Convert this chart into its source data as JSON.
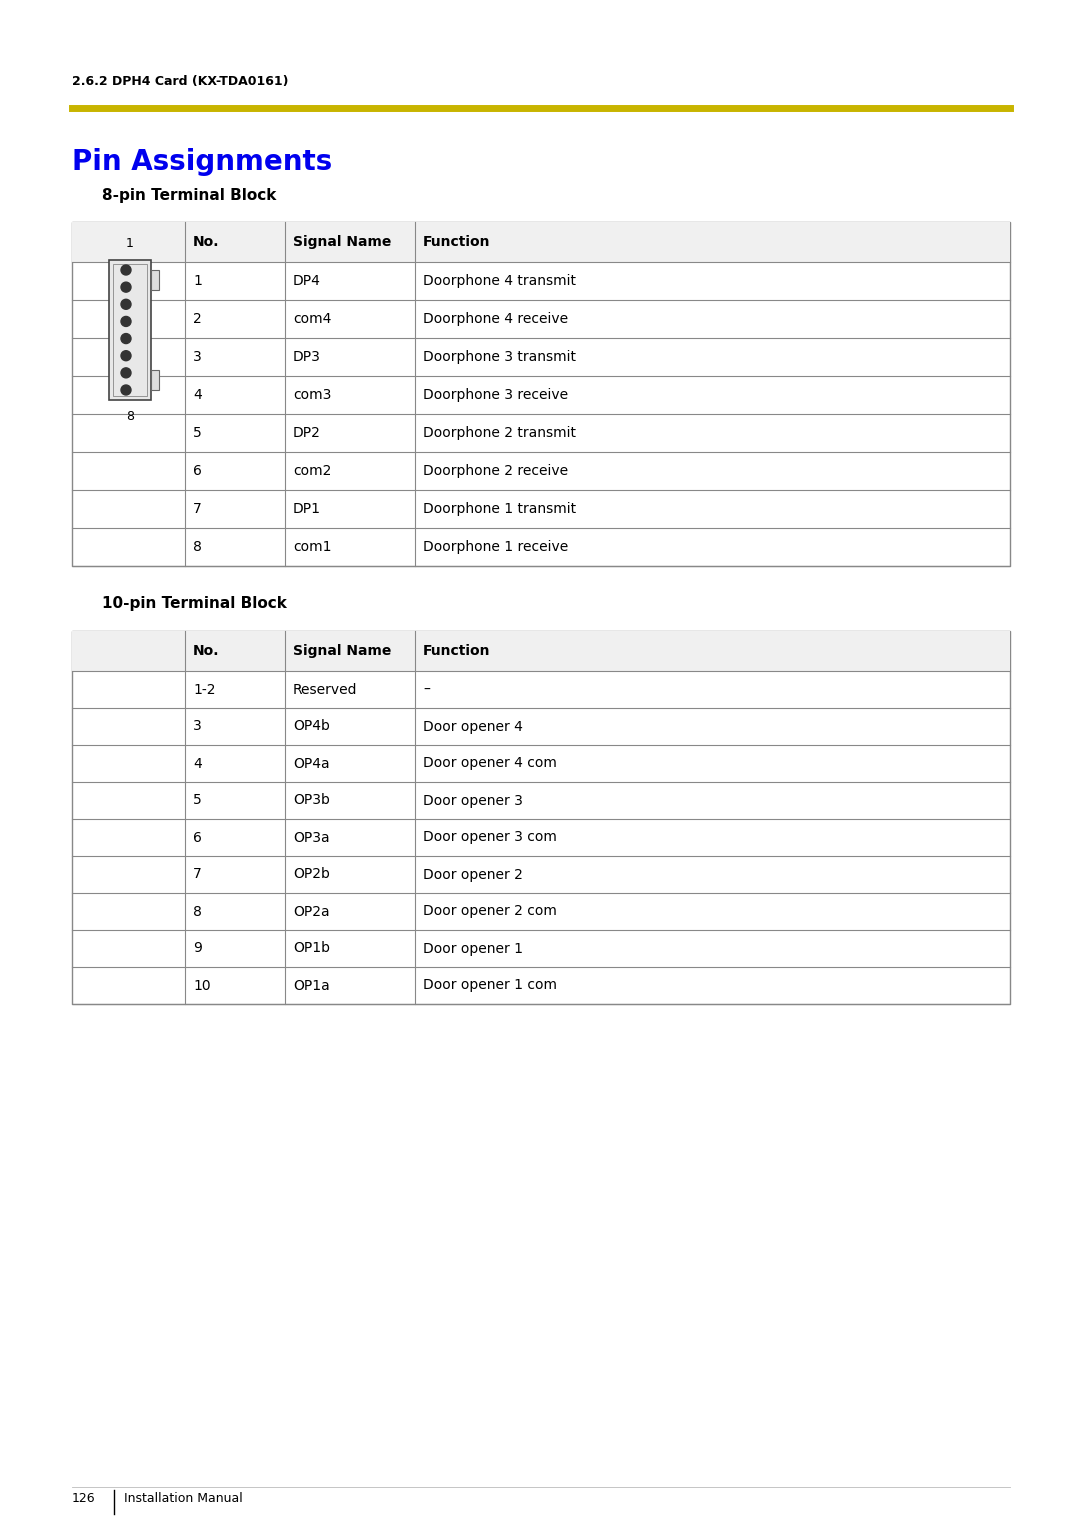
{
  "page_header": "2.6.2 DPH4 Card (KX-TDA0161)",
  "header_line_color": "#C8B400",
  "title": "Pin Assignments",
  "title_color": "#0000EE",
  "section1_title": "8-pin Terminal Block",
  "section2_title": "10-pin Terminal Block",
  "table1_headers": [
    "No.",
    "Signal Name",
    "Function"
  ],
  "table1_rows": [
    [
      "1",
      "DP4",
      "Doorphone 4 transmit"
    ],
    [
      "2",
      "com4",
      "Doorphone 4 receive"
    ],
    [
      "3",
      "DP3",
      "Doorphone 3 transmit"
    ],
    [
      "4",
      "com3",
      "Doorphone 3 receive"
    ],
    [
      "5",
      "DP2",
      "Doorphone 2 transmit"
    ],
    [
      "6",
      "com2",
      "Doorphone 2 receive"
    ],
    [
      "7",
      "DP1",
      "Doorphone 1 transmit"
    ],
    [
      "8",
      "com1",
      "Doorphone 1 receive"
    ]
  ],
  "table2_headers": [
    "No.",
    "Signal Name",
    "Function"
  ],
  "table2_rows": [
    [
      "1-2",
      "Reserved",
      "–"
    ],
    [
      "3",
      "OP4b",
      "Door opener 4"
    ],
    [
      "4",
      "OP4a",
      "Door opener 4 com"
    ],
    [
      "5",
      "OP3b",
      "Door opener 3"
    ],
    [
      "6",
      "OP3a",
      "Door opener 3 com"
    ],
    [
      "7",
      "OP2b",
      "Door opener 2"
    ],
    [
      "8",
      "OP2a",
      "Door opener 2 com"
    ],
    [
      "9",
      "OP1b",
      "Door opener 1"
    ],
    [
      "10",
      "OP1a",
      "Door opener 1 com"
    ]
  ],
  "footer_text": "126",
  "footer_right": "Installation Manual",
  "bg_color": "#FFFFFF",
  "table_border_color": "#888888",
  "header_bg_color": "#F0F0F0"
}
